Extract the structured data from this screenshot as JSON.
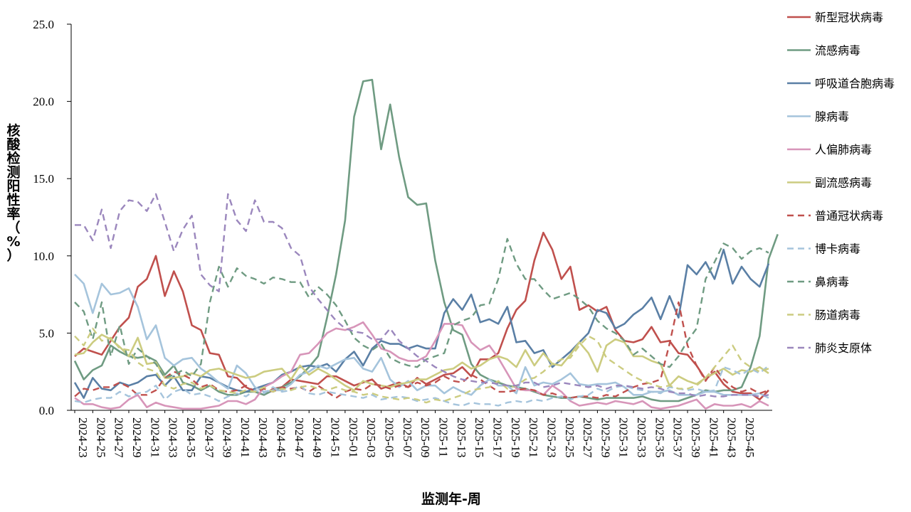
{
  "chart_data": {
    "type": "line",
    "xlabel": "监测年-周",
    "ylabel": "核酸检测阳性率（%）",
    "ylim": [
      0,
      25
    ],
    "yticks": [
      "0.0",
      "5.0",
      "10.0",
      "15.0",
      "20.0",
      "25.0"
    ],
    "x_tick_labels": [
      "2024-23",
      "2024-25",
      "2024-27",
      "2024-29",
      "2024-31",
      "2024-33",
      "2024-35",
      "2024-37",
      "2024-39",
      "2024-41",
      "2024-43",
      "2024-45",
      "2024-47",
      "2024-49",
      "2024-51",
      "2025-01",
      "2025-03",
      "2025-05",
      "2025-07",
      "2025-09",
      "2025-11",
      "2025-13",
      "2025-15",
      "2025-17",
      "2025-19",
      "2025-21",
      "2025-23",
      "2025-25",
      "2025-27",
      "2025-29",
      "2025-31",
      "2025-33",
      "2025-35",
      "2025-37",
      "2025-39",
      "2025-41",
      "2025-43",
      "2025-45"
    ],
    "grid": false,
    "legend_position": "right",
    "series": [
      {
        "name": "新型冠状病毒",
        "color": "#c0504d",
        "dash": false,
        "values": [
          3.5,
          4.0,
          3.8,
          3.6,
          4.5,
          5.4,
          6.0,
          8.0,
          8.5,
          10.0,
          7.4,
          9.0,
          7.7,
          5.5,
          5.2,
          3.7,
          3.6,
          2.2,
          2.1,
          1.5,
          1.2,
          1.0,
          1.4,
          1.5,
          2.0,
          1.9,
          1.8,
          1.7,
          2.2,
          2.2,
          1.9,
          1.6,
          1.8,
          2.0,
          1.4,
          1.6,
          1.8,
          1.5,
          2.1,
          1.7,
          2.0,
          2.3,
          2.4,
          2.8,
          2.2,
          3.3,
          3.3,
          3.7,
          5.3,
          6.5,
          7.1,
          9.7,
          11.5,
          10.4,
          8.5,
          9.3,
          6.5,
          6.8,
          6.4,
          6.7,
          5.2,
          4.5,
          4.4,
          4.6,
          5.4,
          4.4,
          4.5,
          3.7,
          3.6,
          2.9,
          2.0,
          2.5,
          1.7,
          1.2,
          1.1,
          1.1,
          0.7,
          1.3
        ]
      },
      {
        "name": "流感病毒",
        "color": "#6f9b82",
        "dash": false,
        "values": [
          3.2,
          2.0,
          2.6,
          2.9,
          4.2,
          3.8,
          3.5,
          3.4,
          3.5,
          3.2,
          2.3,
          2.9,
          1.8,
          1.6,
          1.3,
          1.6,
          1.2,
          1.0,
          1.0,
          1.2,
          1.2,
          1.0,
          1.3,
          1.5,
          1.8,
          2.2,
          2.8,
          3.5,
          6.0,
          8.8,
          12.3,
          19.0,
          21.3,
          21.4,
          16.9,
          19.8,
          16.4,
          13.8,
          13.3,
          13.4,
          9.7,
          7.0,
          5.2,
          4.9,
          3.0,
          2.3,
          2.0,
          1.8,
          1.6,
          1.5,
          1.4,
          1.2,
          1.0,
          0.9,
          0.8,
          0.8,
          0.9,
          0.8,
          0.7,
          0.8,
          0.8,
          0.8,
          0.8,
          0.9,
          0.7,
          0.6,
          0.6,
          0.6,
          0.8,
          1.0,
          1.3,
          1.2,
          1.3,
          1.3,
          1.5,
          2.8,
          4.8,
          9.8,
          11.4
        ]
      },
      {
        "name": "呼吸道合胞病毒",
        "color": "#5a7fa5",
        "dash": false,
        "values": [
          1.8,
          0.8,
          2.1,
          1.4,
          1.3,
          1.8,
          1.6,
          1.8,
          2.2,
          2.3,
          1.6,
          2.2,
          1.3,
          1.3,
          2.2,
          2.1,
          1.8,
          1.5,
          1.3,
          1.2,
          1.4,
          1.6,
          1.8,
          2.3,
          2.5,
          2.8,
          2.9,
          2.8,
          3.0,
          2.5,
          3.3,
          3.8,
          2.9,
          4.0,
          4.5,
          4.3,
          4.3,
          4.0,
          4.2,
          4.0,
          4.0,
          6.3,
          7.2,
          6.5,
          7.5,
          5.7,
          5.9,
          5.6,
          6.7,
          4.4,
          4.5,
          3.7,
          3.9,
          2.8,
          3.3,
          3.8,
          4.4,
          5.0,
          6.5,
          6.3,
          5.3,
          5.6,
          6.2,
          6.6,
          7.3,
          5.9,
          7.4,
          6.0,
          9.4,
          8.8,
          9.6,
          8.5,
          10.4,
          8.2,
          9.3,
          8.5,
          8.0,
          9.5
        ]
      },
      {
        "name": "腺病毒",
        "color": "#a5c4dc",
        "dash": false,
        "values": [
          8.8,
          8.2,
          6.3,
          8.2,
          7.5,
          7.6,
          7.9,
          6.7,
          4.6,
          5.5,
          3.4,
          2.9,
          3.3,
          3.4,
          2.7,
          2.3,
          1.8,
          1.4,
          2.9,
          2.4,
          1.5,
          1.2,
          1.3,
          1.3,
          1.7,
          2.3,
          2.5,
          2.9,
          2.7,
          3.0,
          3.3,
          3.4,
          2.7,
          2.5,
          3.4,
          2.0,
          1.5,
          1.9,
          1.3,
          1.6,
          1.6,
          1.1,
          1.5,
          1.2,
          1.0,
          1.6,
          2.0,
          1.6,
          1.6,
          1.1,
          2.8,
          1.6,
          1.8,
          1.7,
          2.0,
          2.4,
          1.7,
          1.6,
          1.7,
          1.7,
          1.8,
          1.5,
          1.0,
          1.0,
          1.2,
          1.2,
          1.3,
          1.0,
          1.0,
          1.0,
          1.2,
          1.2,
          1.0,
          1.0,
          1.0,
          1.0,
          1.1,
          0.8
        ]
      },
      {
        "name": "人偏肺病毒",
        "color": "#d795b9",
        "dash": false,
        "values": [
          0.8,
          0.4,
          0.4,
          0.2,
          0.1,
          0.2,
          0.7,
          1.0,
          0.2,
          0.5,
          0.3,
          0.2,
          0.1,
          0.1,
          0.1,
          0.2,
          0.3,
          0.6,
          0.6,
          0.4,
          0.7,
          1.5,
          1.8,
          2.2,
          2.5,
          3.6,
          3.7,
          4.3,
          5.0,
          5.3,
          5.2,
          5.4,
          5.7,
          4.9,
          4.0,
          3.8,
          3.4,
          3.2,
          3.2,
          3.5,
          4.5,
          5.6,
          5.6,
          5.5,
          4.4,
          3.9,
          4.2,
          3.4,
          2.4,
          1.4,
          1.3,
          1.3,
          1.0,
          1.6,
          1.2,
          0.6,
          0.3,
          0.4,
          0.5,
          0.4,
          0.6,
          0.5,
          0.4,
          0.6,
          0.2,
          0.1,
          0.2,
          0.3,
          0.5,
          0.7,
          0.1,
          0.4,
          0.3,
          0.3,
          0.4,
          0.2,
          0.6,
          0.3
        ]
      },
      {
        "name": "副流感病毒",
        "color": "#cccc80",
        "dash": false,
        "values": [
          3.6,
          3.7,
          4.4,
          4.9,
          4.6,
          4.1,
          3.5,
          4.7,
          3.0,
          3.1,
          2.1,
          2.1,
          2.2,
          2.4,
          2.2,
          2.6,
          2.7,
          2.5,
          2.3,
          2.1,
          2.2,
          2.5,
          2.6,
          2.7,
          2.0,
          2.9,
          2.3,
          2.7,
          2.4,
          2.0,
          1.6,
          1.3,
          1.9,
          1.7,
          1.6,
          1.5,
          1.7,
          1.8,
          2.0,
          2.0,
          2.3,
          2.6,
          2.7,
          3.1,
          2.7,
          2.9,
          3.3,
          3.5,
          3.3,
          2.8,
          3.9,
          2.9,
          3.7,
          3.0,
          2.9,
          3.6,
          4.4,
          3.7,
          2.5,
          4.2,
          4.6,
          4.4,
          3.5,
          3.5,
          3.2,
          3.0,
          1.6,
          2.2,
          1.9,
          1.7,
          2.1,
          2.4,
          2.7,
          2.3,
          2.6,
          2.5,
          2.8,
          2.4
        ]
      },
      {
        "name": "普通冠状病毒",
        "color": "#c0504d",
        "dash": true,
        "values": [
          0.9,
          1.4,
          1.3,
          1.5,
          1.5,
          1.8,
          1.5,
          1.0,
          1.0,
          1.3,
          2.1,
          2.5,
          2.3,
          2.0,
          1.5,
          1.7,
          1.3,
          1.2,
          1.3,
          1.6,
          1.2,
          1.4,
          1.2,
          1.5,
          1.4,
          1.5,
          1.2,
          1.6,
          1.2,
          0.8,
          1.2,
          1.4,
          1.3,
          1.7,
          1.6,
          1.4,
          1.6,
          1.5,
          1.8,
          1.6,
          1.8,
          2.2,
          1.9,
          1.8,
          2.3,
          2.0,
          1.6,
          1.2,
          1.2,
          1.3,
          1.4,
          1.3,
          1.0,
          1.1,
          0.9,
          0.8,
          0.9,
          0.9,
          0.8,
          1.0,
          0.9,
          1.2,
          1.5,
          1.7,
          1.8,
          2.0,
          4.3,
          7.0,
          4.2,
          2.9,
          1.9,
          2.8,
          2.0,
          1.5,
          1.2,
          1.4,
          1.1,
          1.3
        ]
      },
      {
        "name": "博卡病毒",
        "color": "#a5c4dc",
        "dash": true,
        "values": [
          0.6,
          0.5,
          0.7,
          0.8,
          0.8,
          1.2,
          0.9,
          1.1,
          1.2,
          1.6,
          0.7,
          1.2,
          1.4,
          1.0,
          1.1,
          0.9,
          0.6,
          0.9,
          1.1,
          0.9,
          1.3,
          1.1,
          1.5,
          1.2,
          1.3,
          1.6,
          1.1,
          1.0,
          1.2,
          1.1,
          1.0,
          0.9,
          0.8,
          1.0,
          0.7,
          0.8,
          0.9,
          0.8,
          0.6,
          0.7,
          0.8,
          0.6,
          0.4,
          0.3,
          0.5,
          0.4,
          0.4,
          0.3,
          0.5,
          0.6,
          0.5,
          0.7,
          0.6,
          0.8,
          0.9,
          0.7,
          0.9,
          1.0,
          1.4,
          1.2,
          1.5,
          1.6,
          1.4,
          1.3,
          1.2,
          1.1,
          1.5,
          1.4,
          1.3,
          1.4,
          1.2,
          1.3,
          2.8,
          2.6,
          2.3,
          2.7,
          2.4,
          2.9
        ]
      },
      {
        "name": "鼻病毒",
        "color": "#6f9b82",
        "dash": true,
        "values": [
          7.0,
          6.4,
          4.6,
          7.0,
          3.5,
          5.5,
          3.0,
          4.0,
          3.5,
          3.0,
          2.1,
          2.3,
          2.6,
          2.2,
          3.0,
          7.0,
          9.3,
          8.0,
          9.2,
          8.7,
          8.5,
          8.2,
          8.6,
          8.5,
          8.3,
          8.3,
          7.3,
          8.0,
          7.5,
          6.8,
          5.8,
          4.7,
          4.2,
          3.9,
          4.3,
          3.4,
          3.1,
          2.9,
          2.8,
          3.3,
          3.5,
          3.7,
          5.5,
          5.8,
          6.0,
          6.8,
          6.9,
          8.5,
          11.1,
          9.5,
          8.5,
          8.5,
          7.8,
          7.2,
          7.4,
          7.6,
          7.2,
          6.7,
          5.8,
          5.3,
          5.0,
          4.5,
          3.6,
          4.0,
          3.5,
          3.0,
          2.8,
          3.5,
          4.5,
          5.3,
          8.5,
          9.6,
          10.8,
          10.5,
          9.8,
          10.3,
          10.5,
          10.2
        ]
      },
      {
        "name": "肠道病毒",
        "color": "#cccc80",
        "dash": true,
        "values": [
          4.8,
          4.2,
          5.3,
          4.5,
          4.7,
          4.0,
          3.9,
          3.1,
          2.7,
          2.5,
          1.6,
          1.4,
          1.7,
          1.8,
          1.4,
          1.6,
          1.3,
          1.2,
          1.1,
          1.3,
          1.2,
          1.5,
          1.2,
          1.4,
          1.3,
          1.5,
          1.6,
          1.4,
          1.3,
          1.5,
          1.3,
          1.2,
          1.0,
          1.1,
          0.9,
          0.8,
          0.7,
          0.8,
          0.7,
          0.5,
          0.7,
          0.6,
          0.8,
          1.0,
          1.3,
          1.4,
          1.5,
          1.9,
          1.4,
          1.6,
          2.0,
          2.1,
          2.5,
          3.0,
          3.3,
          3.4,
          4.2,
          4.8,
          4.5,
          3.4,
          3.0,
          2.6,
          2.2,
          1.9,
          1.7,
          1.5,
          1.6,
          1.4,
          1.4,
          1.6,
          2.1,
          2.8,
          3.5,
          4.2,
          3.2,
          2.8,
          2.5,
          2.7
        ]
      },
      {
        "name": "肺炎支原体",
        "color": "#9b87bd",
        "dash": true,
        "values": [
          12.0,
          12.0,
          11.0,
          13.0,
          10.5,
          12.9,
          13.6,
          13.5,
          12.9,
          14.0,
          12.2,
          10.3,
          11.7,
          12.6,
          8.8,
          8.1,
          7.7,
          14.0,
          12.3,
          11.6,
          13.6,
          12.2,
          12.2,
          11.8,
          10.5,
          10.0,
          8.0,
          7.2,
          6.5,
          5.8,
          5.3,
          5.1,
          5.0,
          4.6,
          4.6,
          5.3,
          4.5,
          4.0,
          3.5,
          3.2,
          2.8,
          2.5,
          2.2,
          2.0,
          1.9,
          1.8,
          1.8,
          1.7,
          1.6,
          1.6,
          1.8,
          1.8,
          1.5,
          1.6,
          1.8,
          1.7,
          1.6,
          1.5,
          1.6,
          1.4,
          1.6,
          1.6,
          1.5,
          1.4,
          1.5,
          1.4,
          1.2,
          1.1,
          1.1,
          0.9,
          1.0,
          0.9,
          0.9,
          1.0,
          1.0,
          1.0,
          0.9,
          1.0
        ]
      }
    ]
  }
}
